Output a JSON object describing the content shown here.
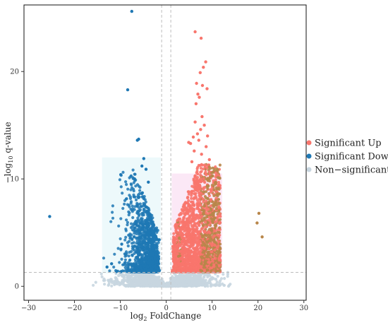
{
  "chart_data": {
    "type": "scatter",
    "title": "",
    "xlabel_main": "log",
    "xlabel_sub": "2",
    "xlabel_tail": " FoldChange",
    "ylabel_main": "−log",
    "ylabel_sub": "10",
    "ylabel_tail": " q-value",
    "xlim": [
      -31,
      30.5
    ],
    "ylim": [
      -1.3,
      26.2
    ],
    "x_ticks": [
      -30,
      -20,
      -10,
      0,
      10,
      20,
      30
    ],
    "x_tick_labels": [
      "−30",
      "−20",
      "−10",
      "0",
      "10",
      "20",
      "30"
    ],
    "y_ticks": [
      0,
      10,
      20
    ],
    "y_tick_labels": [
      "0",
      "10",
      "20"
    ],
    "grid": false,
    "legend_position": "right",
    "thresholds": {
      "fold_change_x": [
        -1,
        1
      ],
      "q_value_y": 1.3
    },
    "series": [
      {
        "name": "Significant Up",
        "color": "#f8766d",
        "points": [
          [
            6.3,
            23.7
          ],
          [
            7.6,
            23.1
          ],
          [
            8.6,
            20.9
          ],
          [
            8.1,
            20.4
          ],
          [
            7.4,
            19.9
          ],
          [
            6.6,
            18.9
          ],
          [
            8.9,
            18.4
          ],
          [
            7.9,
            18.7
          ],
          [
            6.9,
            17.9
          ],
          [
            7.2,
            17.6
          ],
          [
            6.5,
            17.0
          ],
          [
            7.8,
            15.8
          ],
          [
            6.3,
            15.3
          ],
          [
            8.3,
            15.0
          ],
          [
            7.5,
            14.6
          ],
          [
            6.8,
            14.2
          ],
          [
            9.0,
            14.0
          ],
          [
            5.9,
            13.9
          ],
          [
            7.1,
            13.6
          ],
          [
            4.9,
            13.4
          ],
          [
            5.3,
            13.3
          ],
          [
            8.7,
            13.0
          ],
          [
            6.1,
            12.6
          ],
          [
            7.7,
            12.3
          ],
          [
            9.4,
            11.8
          ],
          [
            5.6,
            11.6
          ],
          [
            20.2,
            6.8
          ],
          [
            20.9,
            4.6
          ],
          [
            19.8,
            5.9
          ]
        ]
      },
      {
        "name": "Significant Down",
        "color": "#1f78b4",
        "points": [
          [
            -7.5,
            25.6
          ],
          [
            -8.4,
            18.3
          ],
          [
            -6.3,
            13.6
          ],
          [
            -6.0,
            13.7
          ],
          [
            -4.9,
            11.9
          ],
          [
            -5.3,
            11.2
          ],
          [
            -4.4,
            10.9
          ],
          [
            -9.9,
            10.4
          ],
          [
            -25.4,
            6.5
          ],
          [
            -12.9,
            1.8
          ],
          [
            -11.9,
            2.1
          ],
          [
            -6.9,
            10.0
          ],
          [
            -3.9,
            9.7
          ]
        ]
      },
      {
        "name": "Non−significant",
        "color": "#c8d6e0",
        "points": []
      }
    ],
    "legend": [
      "Significant Up",
      "Significant Down",
      "Non−significant"
    ]
  }
}
